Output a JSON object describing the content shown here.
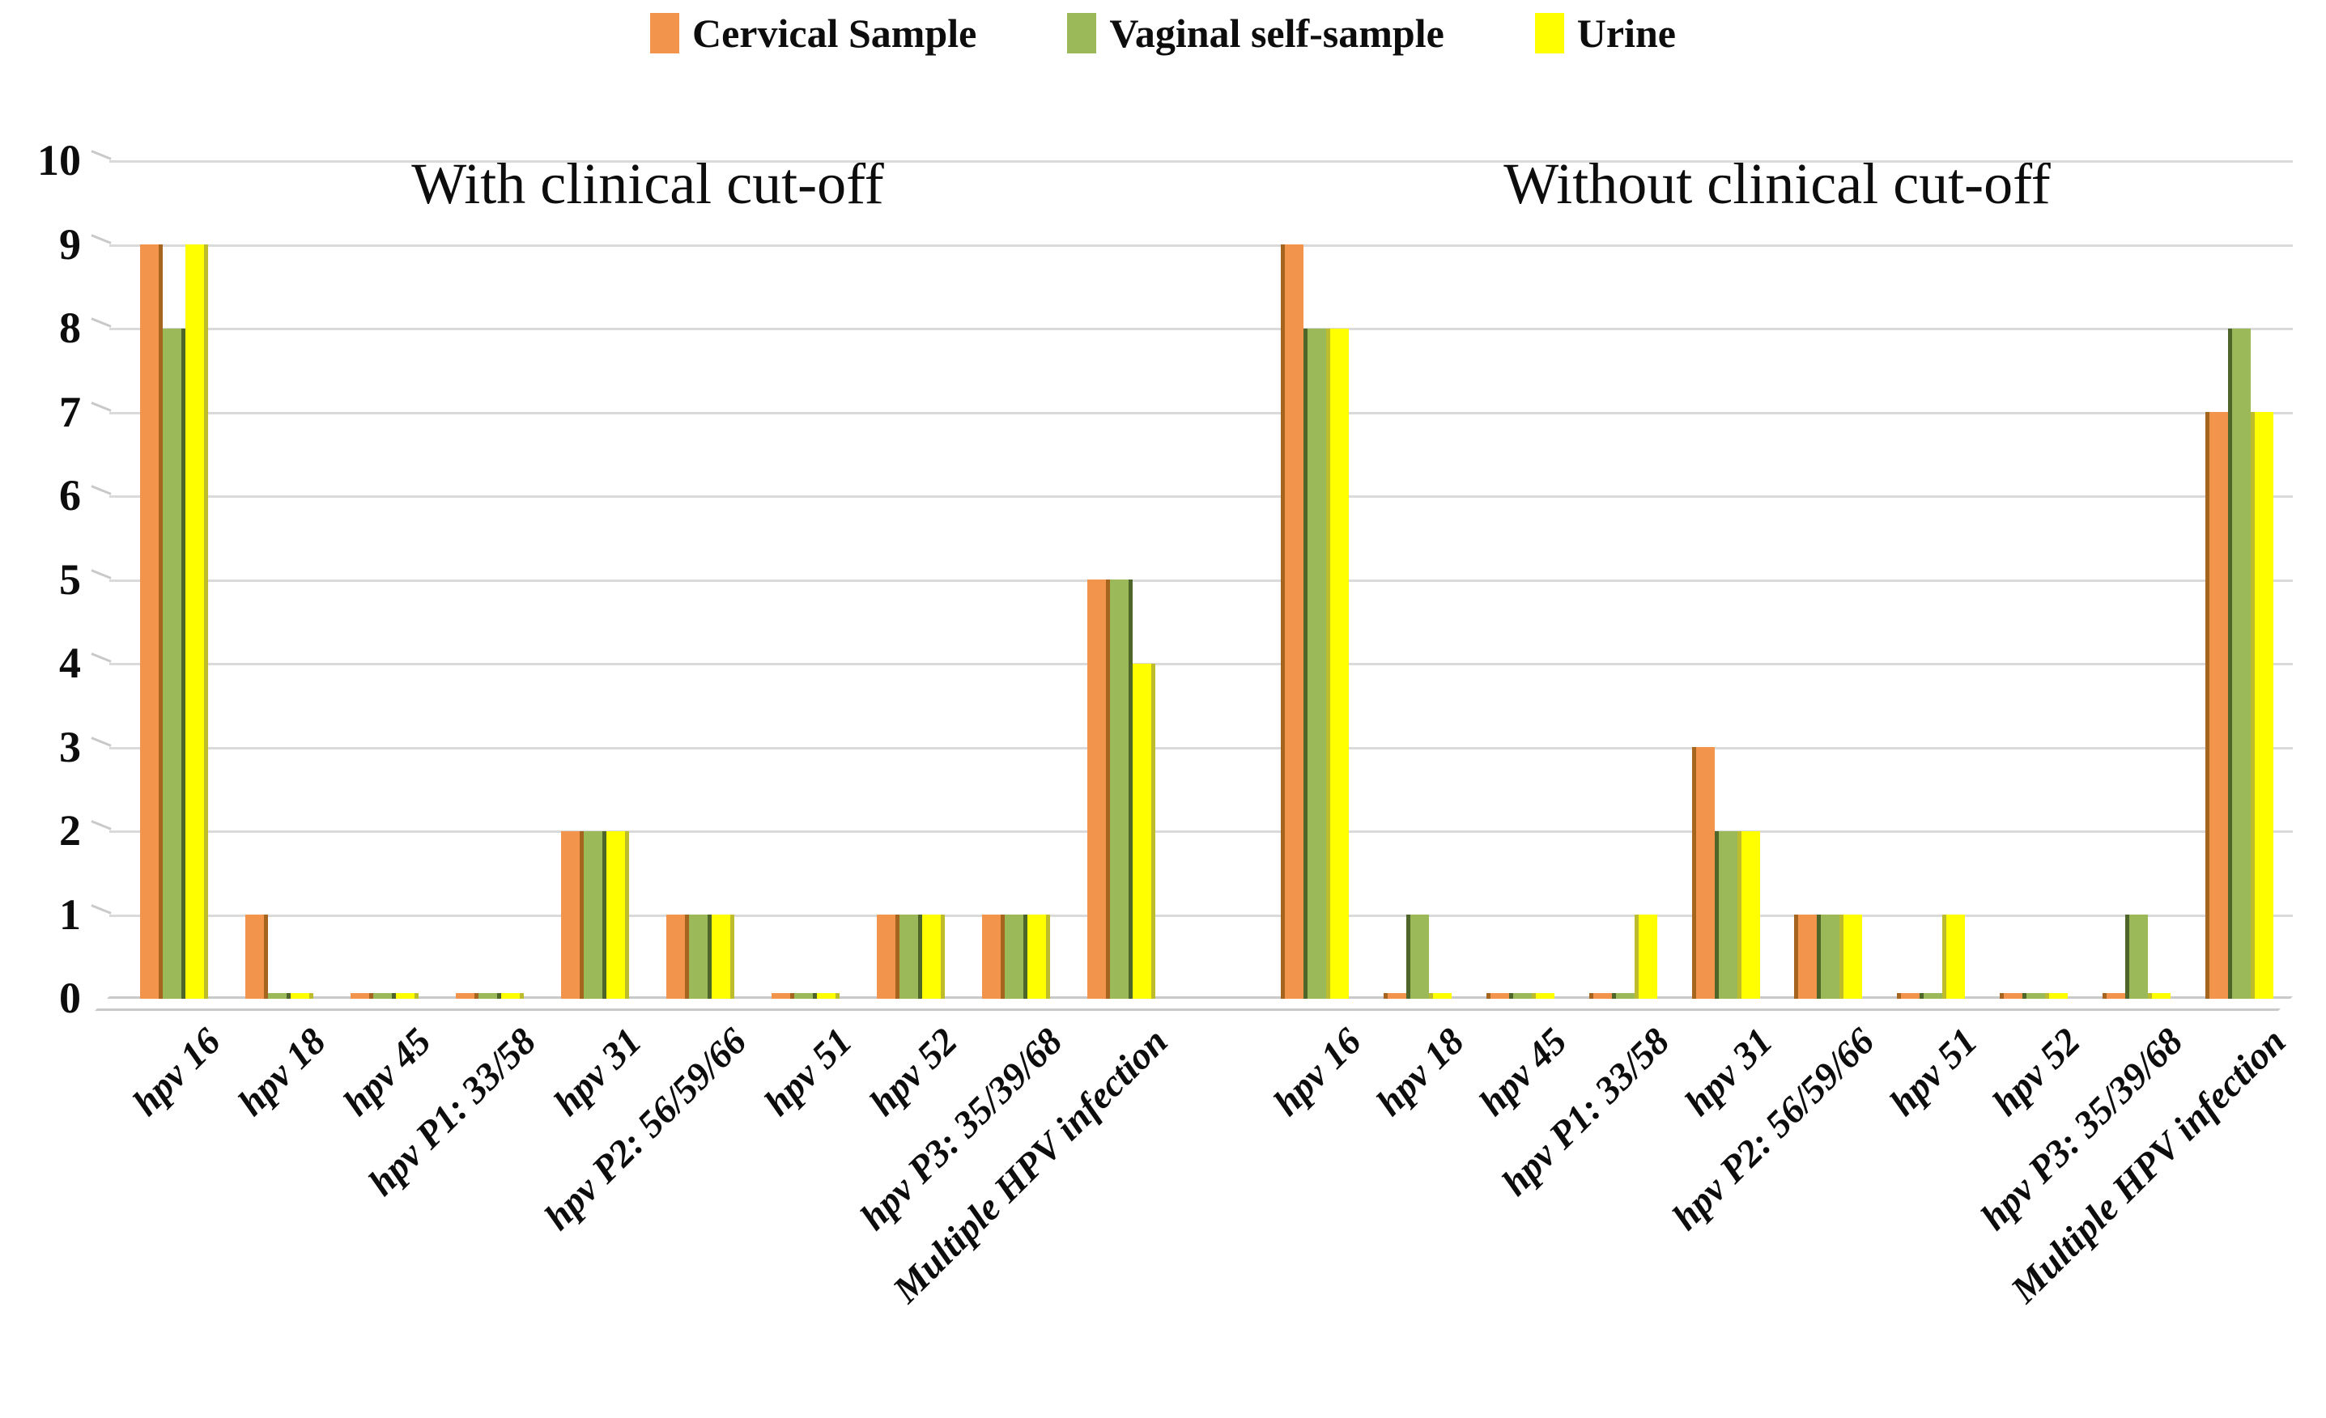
{
  "chart_data": {
    "type": "bar",
    "title": "",
    "xlabel": "",
    "ylabel": "",
    "ylim": [
      0,
      10
    ],
    "ytick_interval": 1,
    "yticks": [
      "0",
      "1",
      "2",
      "3",
      "4",
      "5",
      "6",
      "7",
      "8",
      "9",
      "10"
    ],
    "grid": true,
    "legend_position": "top-center",
    "categories": [
      "hpv 16",
      "hpv 18",
      "hpv 45",
      "hpv P1: 33/58",
      "hpv 31",
      "hpv P2: 56/59/66",
      "hpv 51",
      "hpv 52",
      "hpv P3: 35/39/68",
      "Multiple HPV infection"
    ],
    "series_meta": [
      {
        "name": "Cervical Sample",
        "color": "#F2944B",
        "shade": "#A5651F"
      },
      {
        "name": "Vaginal self-sample",
        "color": "#9CB95A",
        "shade": "#4F662A"
      },
      {
        "name": "Urine",
        "color": "#FFFF00",
        "shade": "#BCBC2D"
      }
    ],
    "panels": [
      {
        "title": "With clinical cut-off",
        "series": [
          {
            "name": "Cervical Sample",
            "values": [
              9,
              1,
              0,
              0,
              2,
              1,
              0,
              1,
              1,
              5
            ]
          },
          {
            "name": "Vaginal self-sample",
            "values": [
              8,
              0,
              0,
              0,
              2,
              1,
              0,
              1,
              1,
              5
            ]
          },
          {
            "name": "Urine",
            "values": [
              9,
              0,
              0,
              0,
              2,
              1,
              0,
              1,
              1,
              4
            ]
          }
        ]
      },
      {
        "title": "Without clinical cut-off",
        "series": [
          {
            "name": "Cervical Sample",
            "values": [
              9,
              0,
              0,
              0,
              3,
              1,
              0,
              0,
              0,
              7
            ]
          },
          {
            "name": "Vaginal self-sample",
            "values": [
              8,
              1,
              0,
              0,
              2,
              1,
              0,
              0,
              1,
              8
            ]
          },
          {
            "name": "Urine",
            "values": [
              8,
              0,
              0,
              1,
              2,
              1,
              1,
              0,
              0,
              7
            ]
          }
        ]
      }
    ]
  },
  "colors": {
    "grid": "#dadada",
    "axis_floor": "#c9c9c9",
    "text": "#0d0d0d",
    "background": "#ffffff"
  }
}
